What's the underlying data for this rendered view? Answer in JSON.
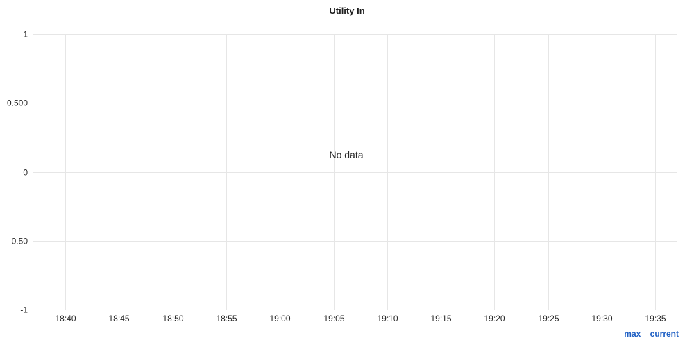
{
  "panel": {
    "title": "Utility In",
    "empty_message": "No data",
    "legend_columns": [
      {
        "label": "max"
      },
      {
        "label": "current"
      }
    ]
  },
  "colors": {
    "grid": "#e6e6e6",
    "text": "#262626",
    "legend": "#1f60c4"
  },
  "chart_data": {
    "type": "line",
    "title": "Utility In",
    "series": [],
    "x": [],
    "xlabel": "",
    "ylabel": "",
    "ylim": [
      -1,
      1
    ],
    "x_ticks": [
      "18:40",
      "18:45",
      "18:50",
      "18:55",
      "19:00",
      "19:05",
      "19:10",
      "19:15",
      "19:20",
      "19:25",
      "19:30",
      "19:35"
    ],
    "y_ticks": [
      {
        "value": 1,
        "label": "1"
      },
      {
        "value": 0.5,
        "label": "0.500"
      },
      {
        "value": 0,
        "label": "0"
      },
      {
        "value": -0.5,
        "label": "-0.50"
      },
      {
        "value": -1,
        "label": "-1"
      }
    ],
    "grid": true,
    "legend_placement": "bottom-right",
    "no_data": true
  }
}
